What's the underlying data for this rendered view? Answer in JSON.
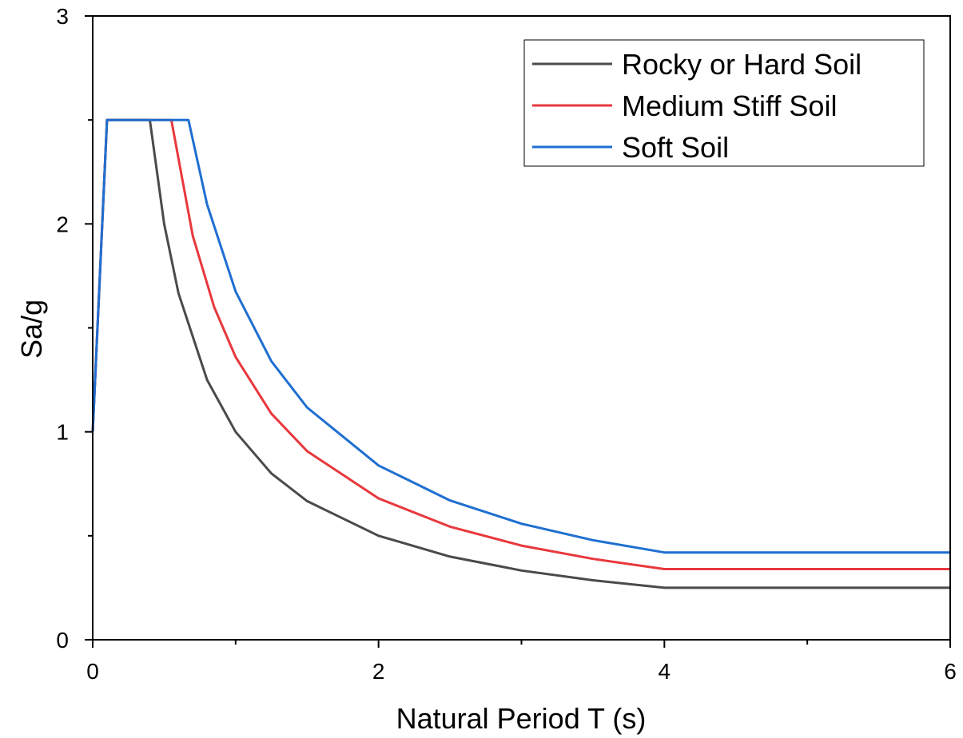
{
  "chart_data": {
    "type": "line",
    "xlabel": "Natural Period T (s)",
    "ylabel": "Sa/g",
    "xlim": [
      0,
      6
    ],
    "ylim": [
      0,
      3
    ],
    "x_ticks": [
      "0",
      "2",
      "4",
      "6"
    ],
    "y_ticks": [
      "0",
      "1",
      "2",
      "3"
    ],
    "x_minor_ticks": [
      1,
      3,
      5
    ],
    "y_minor_ticks": [
      0.5,
      1.5,
      2.5
    ],
    "grid": false,
    "legend_position": "top-right",
    "series": [
      {
        "name": "Rocky or Hard Soil",
        "color": "#4a4a4a",
        "x": [
          0,
          0.1,
          0.4,
          0.5,
          0.6,
          0.8,
          1.0,
          1.25,
          1.5,
          2.0,
          2.5,
          3.0,
          3.5,
          4.0,
          6.0
        ],
        "y": [
          1.0,
          2.5,
          2.5,
          2.0,
          1.667,
          1.25,
          1.0,
          0.8,
          0.667,
          0.5,
          0.4,
          0.333,
          0.286,
          0.25,
          0.25
        ]
      },
      {
        "name": "Medium Stiff Soil",
        "color": "#e8383d",
        "x": [
          0,
          0.1,
          0.55,
          0.7,
          0.85,
          1.0,
          1.25,
          1.5,
          2.0,
          2.5,
          3.0,
          3.5,
          4.0,
          6.0
        ],
        "y": [
          1.0,
          2.5,
          2.5,
          1.943,
          1.6,
          1.36,
          1.088,
          0.907,
          0.68,
          0.544,
          0.453,
          0.389,
          0.34,
          0.34
        ]
      },
      {
        "name": "Soft Soil",
        "color": "#1f6fd1",
        "x": [
          0,
          0.1,
          0.67,
          0.8,
          1.0,
          1.25,
          1.5,
          2.0,
          2.5,
          3.0,
          3.5,
          4.0,
          6.0
        ],
        "y": [
          1.0,
          2.5,
          2.5,
          2.094,
          1.675,
          1.34,
          1.117,
          0.838,
          0.67,
          0.558,
          0.479,
          0.42,
          0.42
        ]
      }
    ]
  }
}
